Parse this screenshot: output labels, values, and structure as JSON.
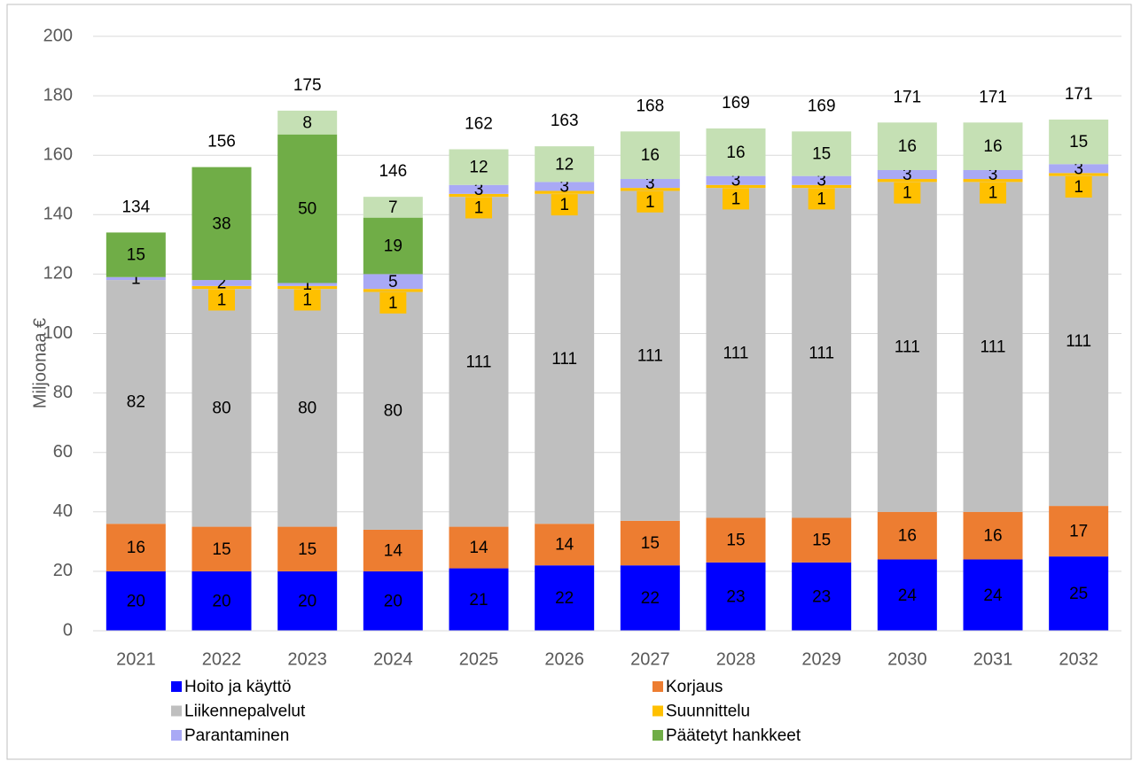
{
  "chart_data": {
    "type": "stacked-bar",
    "ylabel": "Miljoonaa €",
    "categories": [
      "2021",
      "2022",
      "2023",
      "2024",
      "2025",
      "2026",
      "2027",
      "2028",
      "2029",
      "2030",
      "2031",
      "2032"
    ],
    "series": [
      {
        "name": "Hoito ja käyttö",
        "color": "#0000ff",
        "values": [
          20,
          20,
          20,
          20,
          21,
          22,
          22,
          23,
          23,
          24,
          24,
          25
        ]
      },
      {
        "name": "Korjaus",
        "color": "#ed7d31",
        "values": [
          16,
          15,
          15,
          14,
          14,
          14,
          15,
          15,
          15,
          16,
          16,
          17
        ]
      },
      {
        "name": "Liikennepalvelut",
        "color": "#bfbfbf",
        "values": [
          82,
          80,
          80,
          80,
          111,
          111,
          111,
          111,
          111,
          111,
          111,
          111
        ]
      },
      {
        "name": "Suunnittelu",
        "color": "#ffc000",
        "values": [
          null,
          1,
          1,
          1,
          1,
          1,
          1,
          1,
          1,
          1,
          1,
          1
        ]
      },
      {
        "name": "Parantaminen",
        "color": "#a9a9f5",
        "values": [
          1,
          2,
          1,
          5,
          3,
          3,
          3,
          3,
          3,
          3,
          3,
          3
        ]
      },
      {
        "name": "Päätetyt hankkeet",
        "color": "#70ad47",
        "values": [
          15,
          38,
          50,
          19,
          null,
          null,
          null,
          null,
          null,
          null,
          null,
          null
        ]
      },
      {
        "color": "#c5e0b4",
        "values": [
          null,
          null,
          8,
          7,
          12,
          12,
          16,
          16,
          15,
          16,
          16,
          15
        ]
      }
    ],
    "totals": [
      134,
      156,
      175,
      146,
      162,
      163,
      168,
      169,
      169,
      171,
      171,
      171
    ],
    "ylim": [
      0,
      200
    ],
    "yticks": [
      0,
      20,
      40,
      60,
      80,
      100,
      120,
      140,
      160,
      180,
      200
    ],
    "grid": true
  }
}
